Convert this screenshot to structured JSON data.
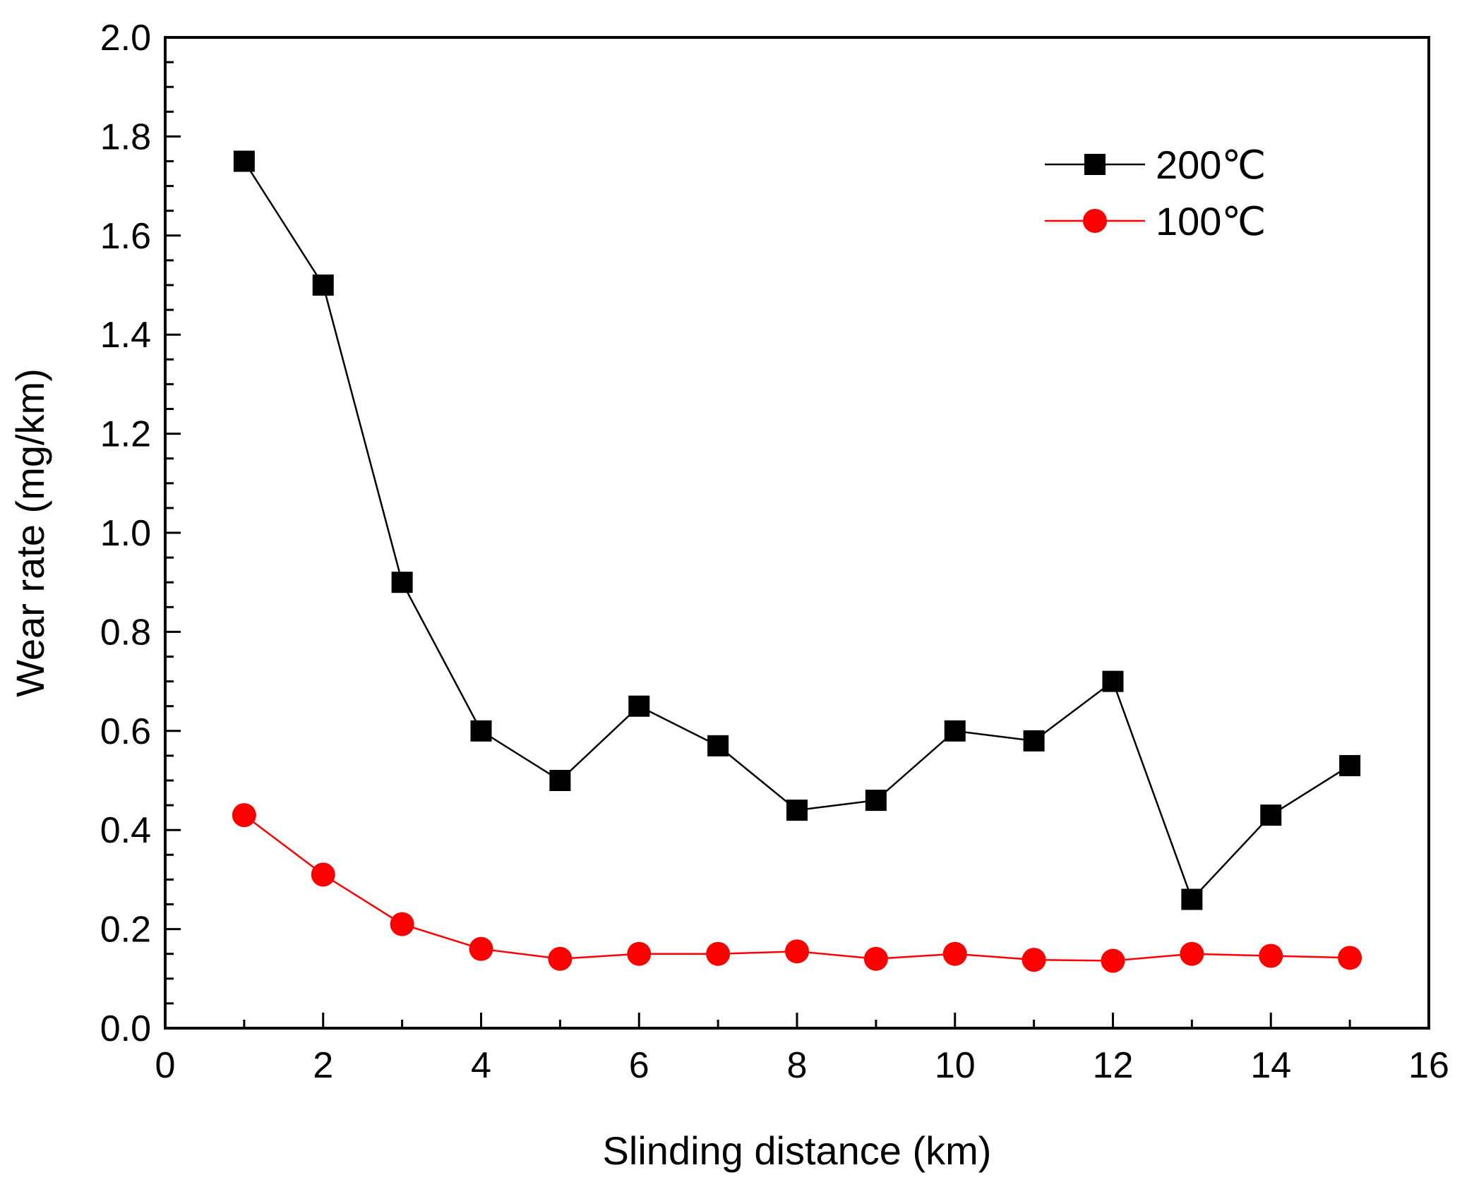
{
  "chart_data": {
    "type": "line",
    "title": "",
    "xlabel": "Slinding distance (km)",
    "ylabel": "Wear rate (mg/km)",
    "xlim": [
      0,
      16
    ],
    "ylim": [
      0.0,
      2.0
    ],
    "xticks": [
      0,
      2,
      4,
      6,
      8,
      10,
      12,
      14,
      16
    ],
    "xtick_labels": [
      "0",
      "2",
      "4",
      "6",
      "8",
      "10",
      "12",
      "14",
      "16"
    ],
    "yticks": [
      0.0,
      0.2,
      0.4,
      0.6,
      0.8,
      1.0,
      1.2,
      1.4,
      1.6,
      1.8,
      2.0
    ],
    "ytick_labels": [
      "0.0",
      "0.2",
      "0.4",
      "0.6",
      "0.8",
      "1.0",
      "1.2",
      "1.4",
      "1.6",
      "1.8",
      "2.0"
    ],
    "grid": false,
    "legend_position": "top-right",
    "x": [
      1,
      2,
      3,
      4,
      5,
      6,
      7,
      8,
      9,
      10,
      11,
      12,
      13,
      14,
      15
    ],
    "series": [
      {
        "name": "200℃",
        "marker": "square",
        "color": "#000000",
        "values": [
          1.75,
          1.5,
          0.9,
          0.6,
          0.5,
          0.65,
          0.57,
          0.44,
          0.46,
          0.6,
          0.58,
          0.7,
          0.26,
          0.43,
          0.53
        ]
      },
      {
        "name": "100℃",
        "marker": "circle",
        "color": "#ff0000",
        "values": [
          0.43,
          0.31,
          0.21,
          0.16,
          0.14,
          0.15,
          0.15,
          0.155,
          0.14,
          0.15,
          0.138,
          0.136,
          0.15,
          0.146,
          0.142
        ]
      }
    ]
  }
}
